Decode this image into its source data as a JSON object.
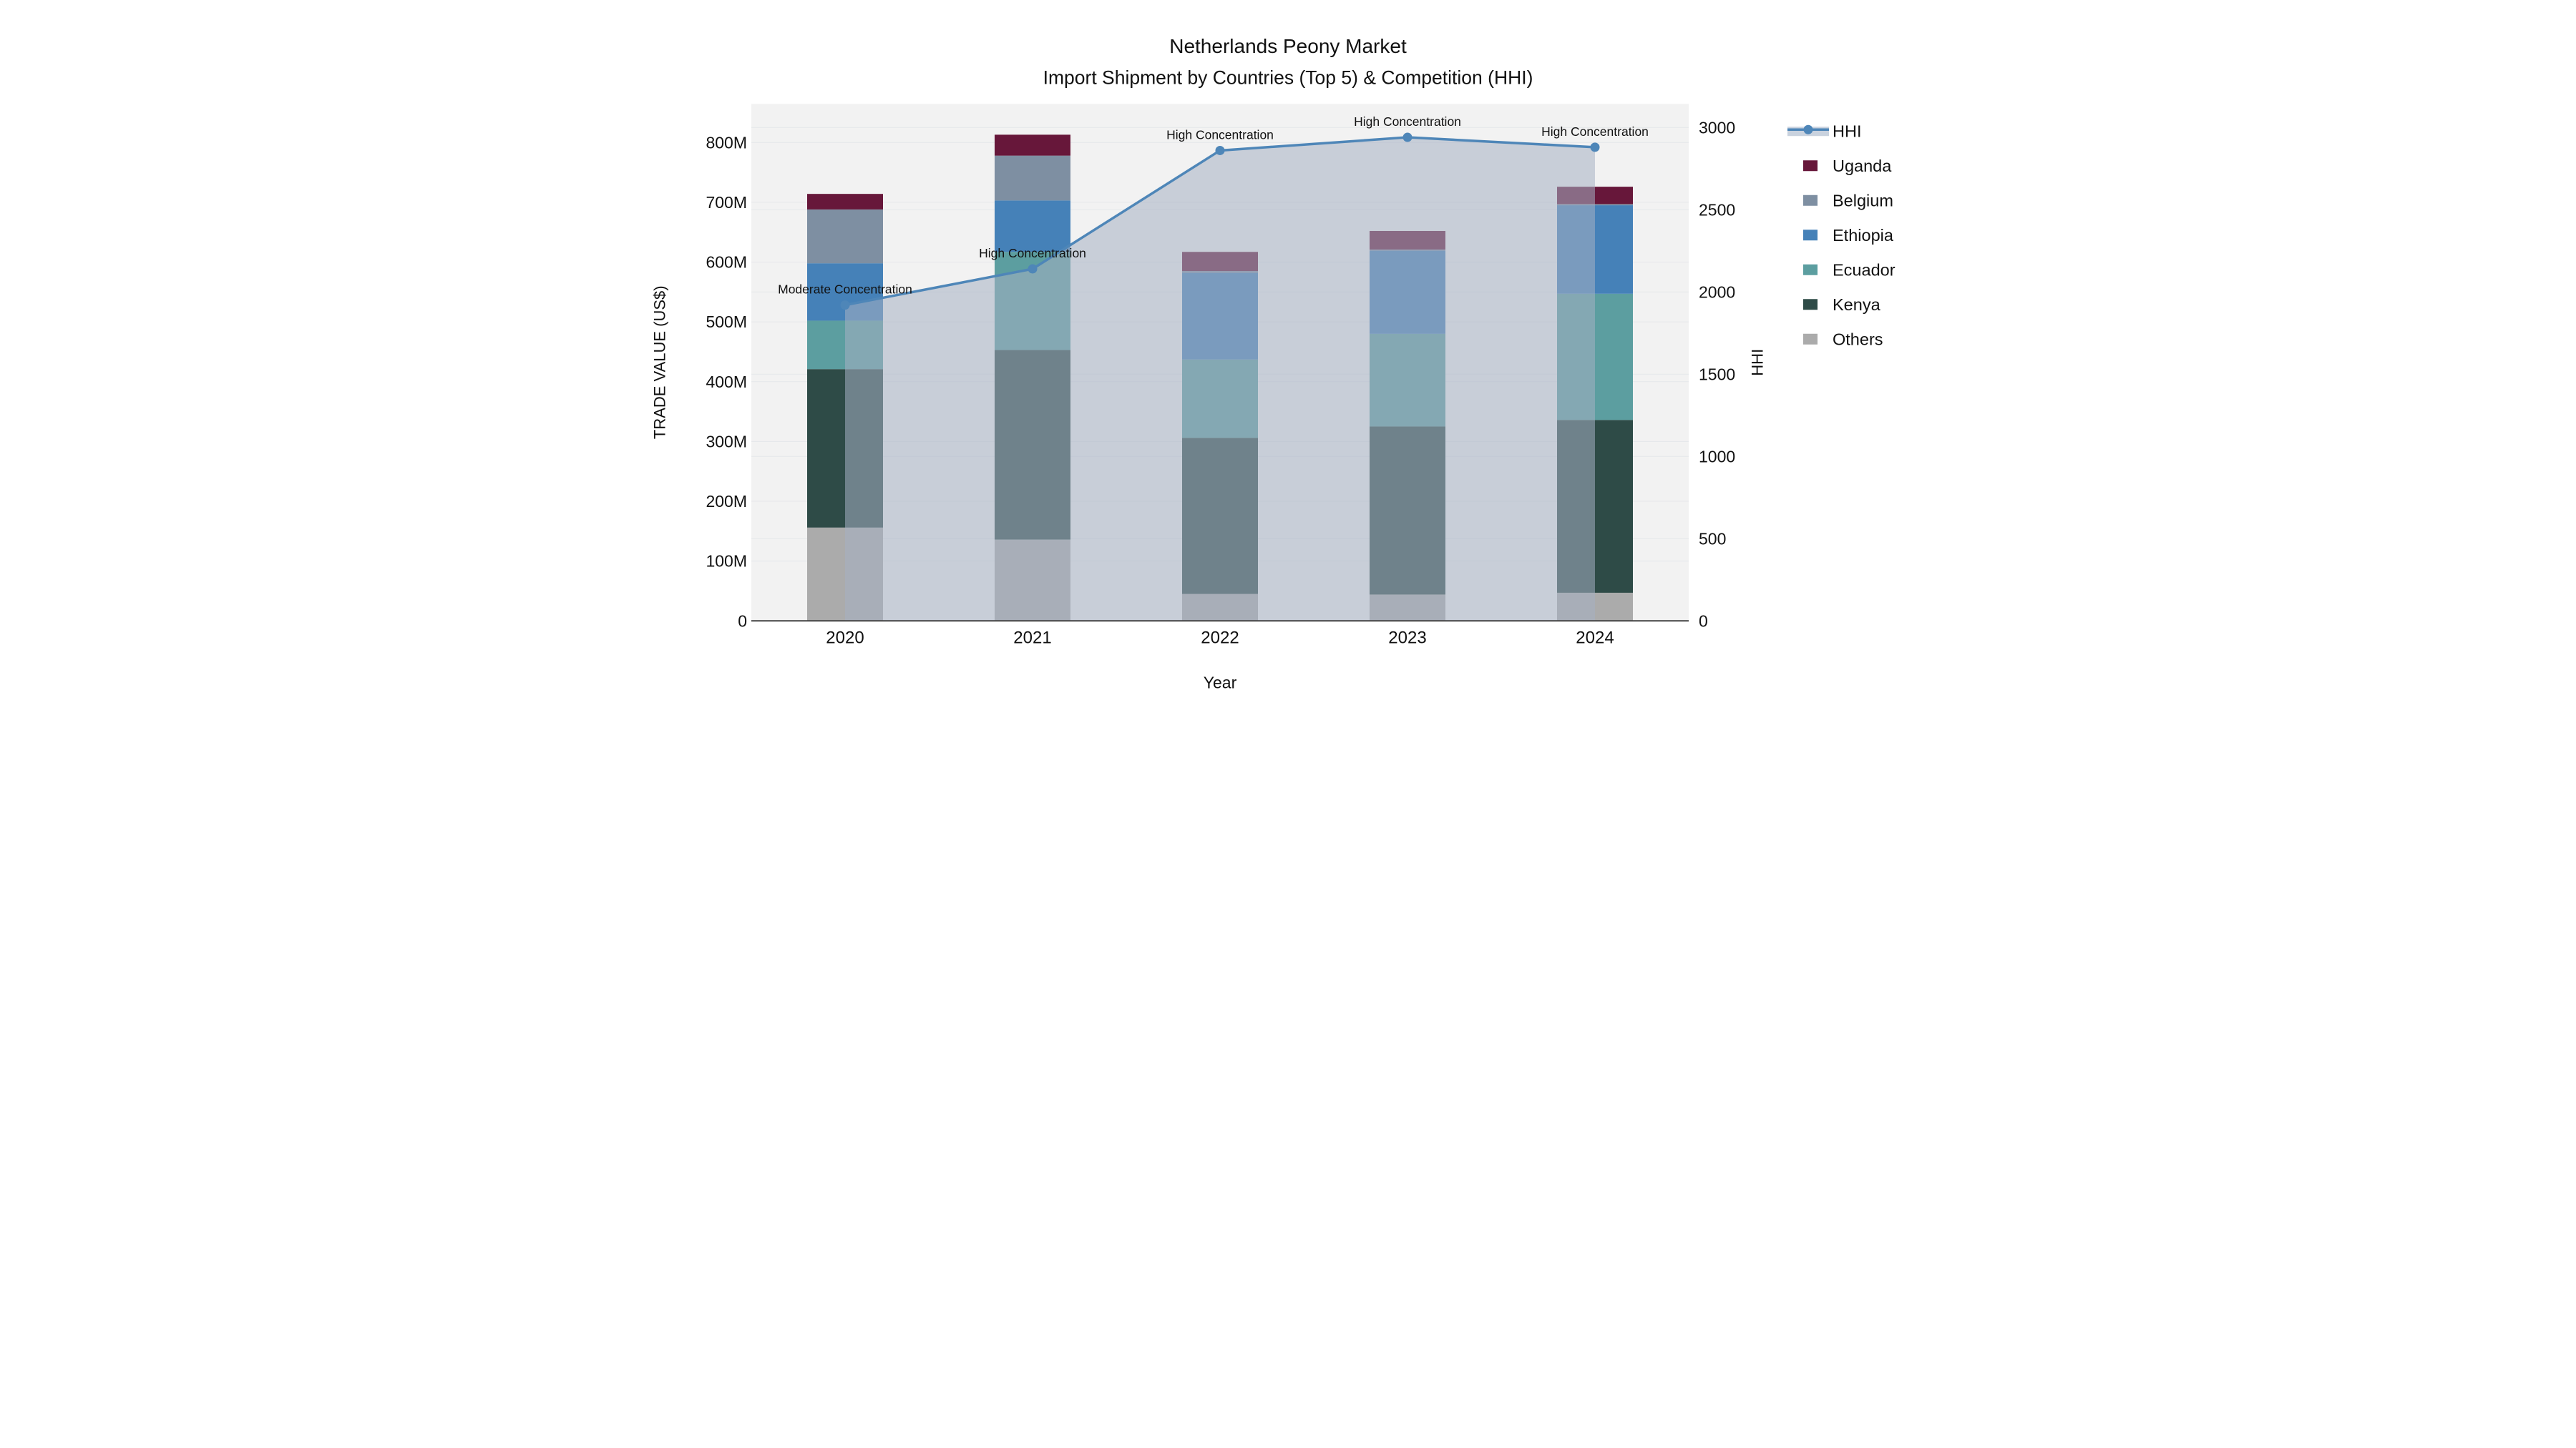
{
  "chart_data": {
    "type": "bar+line",
    "title": "Netherlands Peony Market",
    "subtitle": "Import Shipment by Countries (Top 5) & Competition (HHI)",
    "xlabel": "Year",
    "ylabel_left": "TRADE VALUE (US$)",
    "ylabel_right": "HHI",
    "categories": [
      "2020",
      "2021",
      "2022",
      "2023",
      "2024"
    ],
    "bar_series": [
      {
        "name": "Others",
        "color": "#ABABAB",
        "values": [
          156,
          136,
          45,
          44,
          47
        ]
      },
      {
        "name": "Kenya",
        "color": "#2E4B47",
        "values": [
          265,
          317,
          261,
          281,
          289
        ]
      },
      {
        "name": "Ecuador",
        "color": "#5C9EA0",
        "values": [
          81,
          164,
          131,
          155,
          211
        ]
      },
      {
        "name": "Ethiopia",
        "color": "#4581B8",
        "values": [
          96,
          86,
          145,
          139,
          148
        ]
      },
      {
        "name": "Belgium",
        "color": "#7E8FA2",
        "values": [
          90,
          75,
          3,
          2,
          2
        ]
      },
      {
        "name": "Uganda",
        "color": "#67173A",
        "values": [
          26,
          35,
          32,
          31,
          29
        ]
      }
    ],
    "bar_stack_order": "bottom-to-top",
    "bar_totals": [
      714,
      813,
      617,
      652,
      726
    ],
    "line_series": {
      "name": "HHI",
      "color": "#4E86B8",
      "area_color": "rgba(166,177,194,0.55)",
      "values": [
        1920,
        2140,
        2860,
        2940,
        2880
      ]
    },
    "annotations": [
      {
        "category": "2020",
        "text": "Moderate Concentration"
      },
      {
        "category": "2021",
        "text": "High Concentration"
      },
      {
        "category": "2022",
        "text": "High Concentration"
      },
      {
        "category": "2023",
        "text": "High Concentration"
      },
      {
        "category": "2024",
        "text": "High Concentration"
      }
    ],
    "y_left": {
      "range": [
        0,
        800
      ],
      "unit": "M US$",
      "ticks": [
        "0",
        "100M",
        "200M",
        "300M",
        "400M",
        "500M",
        "600M",
        "700M",
        "800M"
      ]
    },
    "y_right": {
      "range": [
        0,
        3000
      ],
      "ticks": [
        "0",
        "500",
        "1000",
        "1500",
        "2000",
        "2500",
        "3000"
      ]
    },
    "legend": [
      "HHI",
      "Uganda",
      "Belgium",
      "Ethiopia",
      "Ecuador",
      "Kenya",
      "Others"
    ],
    "colors": {
      "plot_background": "#F2F2F2",
      "figure_background": "#FFFFFF",
      "gridline": "#E5E7EA",
      "axis_line": "#424242",
      "text": "#111111"
    }
  }
}
